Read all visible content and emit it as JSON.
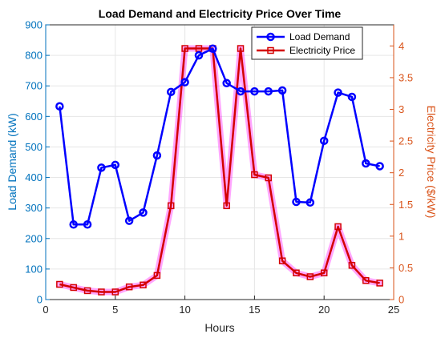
{
  "chart_data": {
    "type": "line",
    "title": "Load Demand and Electricity Price Over Time",
    "xlabel": "Hours",
    "ylabel_left": "Load Demand (kW)",
    "ylabel_right": "Electricity Price ($/kW)",
    "xlim": [
      0,
      25
    ],
    "ylim_left": [
      0,
      900
    ],
    "ylim_right": [
      0,
      4.333
    ],
    "x_ticks": [
      0,
      5,
      10,
      15,
      20,
      25
    ],
    "y_ticks_left": [
      0,
      100,
      200,
      300,
      400,
      500,
      600,
      700,
      800,
      900
    ],
    "y_ticks_right": [
      0,
      0.5,
      1,
      1.5,
      2,
      2.5,
      3,
      3.5,
      4
    ],
    "grid": true,
    "legend_position": "top-right",
    "x": [
      1,
      2,
      3,
      4,
      5,
      6,
      7,
      8,
      9,
      10,
      11,
      12,
      13,
      14,
      15,
      16,
      17,
      18,
      19,
      20,
      21,
      22,
      23,
      24
    ],
    "series": [
      {
        "name": "Load Demand",
        "axis": "left",
        "color": "#0000ff",
        "marker": "circle",
        "values": [
          633,
          246,
          246,
          432,
          441,
          258,
          285,
          472,
          680,
          712,
          800,
          822,
          709,
          682,
          682,
          682,
          685,
          320,
          318,
          520,
          678,
          664,
          446,
          437
        ]
      },
      {
        "name": "Electricity Price",
        "axis": "right",
        "color": "#d40000",
        "glow_color": "#ff00ff",
        "marker": "square",
        "values": [
          0.24,
          0.19,
          0.14,
          0.12,
          0.12,
          0.2,
          0.23,
          0.38,
          1.48,
          3.96,
          3.96,
          3.96,
          1.48,
          3.96,
          1.97,
          1.92,
          0.61,
          0.42,
          0.36,
          0.42,
          1.15,
          0.54,
          0.3,
          0.26
        ]
      }
    ]
  }
}
